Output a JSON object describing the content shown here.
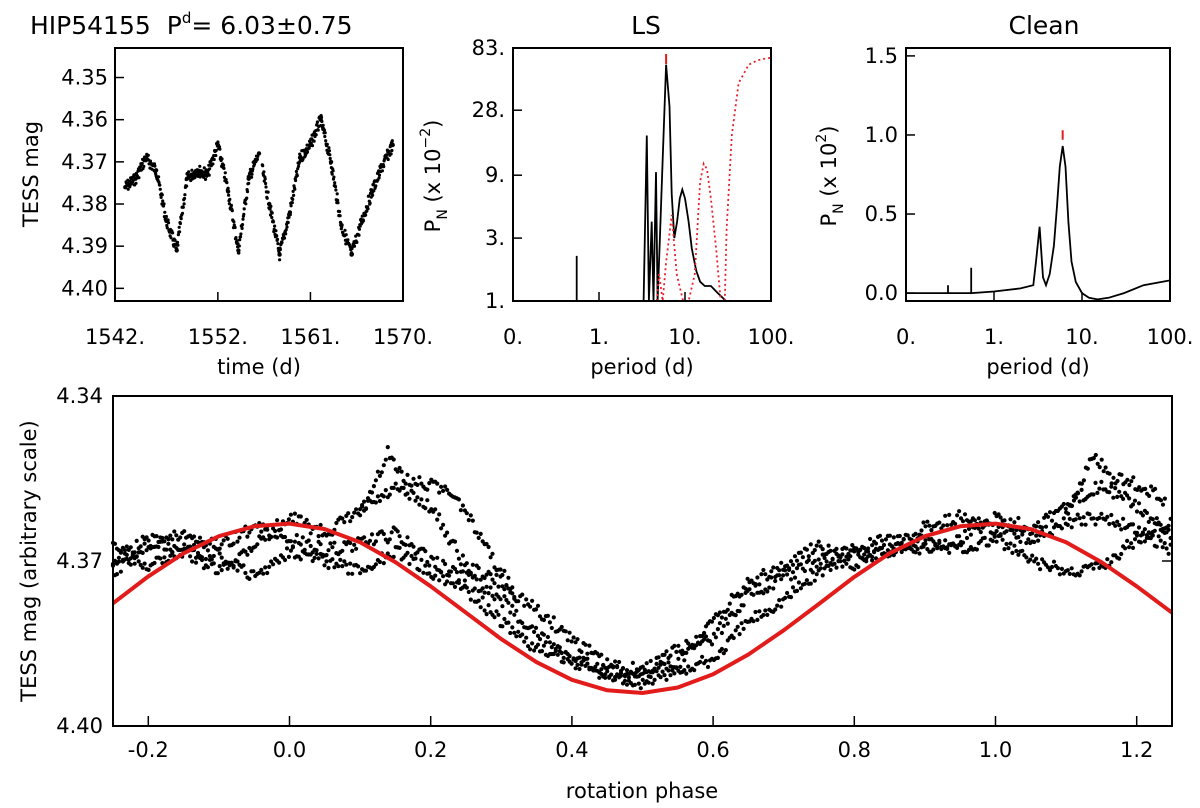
{
  "figure": {
    "star": "HIP54155",
    "period_symbol": "P",
    "period_sup": "d",
    "period_value": "= 6.03±0.75"
  },
  "chart_data": [
    {
      "id": "lightcurve",
      "type": "scatter",
      "title": "HIP54155 P^d= 6.03±0.75",
      "xlabel": "time (d)",
      "ylabel": "TESS mag",
      "xlim": [
        1542,
        1570
      ],
      "ylim": [
        4.403,
        4.343
      ],
      "y_inverted": true,
      "xticks": [
        1542,
        1552,
        1561,
        1570
      ],
      "xtick_labels": [
        "1542.",
        "1552.",
        "1561.",
        "1570."
      ],
      "yticks": [
        4.35,
        4.36,
        4.37,
        4.38,
        4.39,
        4.4
      ],
      "ytick_labels": [
        "4.35",
        "4.36",
        "4.37",
        "4.38",
        "4.39",
        "4.40"
      ],
      "x": [
        1543.0,
        1544.0,
        1545.0,
        1546.0,
        1547.0,
        1548.0,
        1549.0,
        1550.0,
        1551.0,
        1552.0,
        1553.0,
        1554.0,
        1555.0,
        1556.0,
        1557.0,
        1558.0,
        1559.0,
        1560.0,
        1561.0,
        1562.0,
        1563.0,
        1564.0,
        1565.0,
        1566.0,
        1567.0,
        1568.0,
        1569.0
      ],
      "y": [
        4.376,
        4.374,
        4.369,
        4.372,
        4.384,
        4.391,
        4.374,
        4.372,
        4.373,
        4.366,
        4.377,
        4.391,
        4.374,
        4.368,
        4.38,
        4.392,
        4.382,
        4.369,
        4.366,
        4.36,
        4.37,
        4.385,
        4.392,
        4.384,
        4.377,
        4.371,
        4.366
      ]
    },
    {
      "id": "ls",
      "type": "line",
      "title": "LS",
      "xlabel": "period (d)",
      "ylabel": "P_N (x 10^-2)",
      "xscale": "log",
      "yscale": "log",
      "xlim": [
        0.1,
        100
      ],
      "ylim": [
        1,
        83
      ],
      "xtick_labels": [
        "0.",
        "1.",
        "10.",
        "100."
      ],
      "ytick_labels": [
        "1.",
        "3.",
        "9.",
        "28.",
        "83."
      ],
      "yticks": [
        1,
        3,
        9,
        28,
        83
      ],
      "peak_marker_period": 6.03,
      "series": [
        {
          "name": "periodogram",
          "color": "#000000",
          "style": "solid",
          "x": [
            0.55,
            0.55,
            0.55,
            3.3,
            3.6,
            3.8,
            4.1,
            4.3,
            4.6,
            4.8,
            5.1,
            5.5,
            6.03,
            6.6,
            7.0,
            7.5,
            8.1,
            8.7,
            9.3,
            10.0,
            11.0,
            12.0,
            13.5,
            15.0,
            17.0,
            20.0,
            24.0,
            30.0
          ],
          "values": [
            1.0,
            2.2,
            1.0,
            1.0,
            18.0,
            1.0,
            4.0,
            1.0,
            9.5,
            1.0,
            3.0,
            12.0,
            62.0,
            30.0,
            6.5,
            3.0,
            4.0,
            6.0,
            7.0,
            6.0,
            4.0,
            2.5,
            1.7,
            1.4,
            1.3,
            1.3,
            1.15,
            1.0
          ]
        },
        {
          "name": "window function",
          "color": "#e8202a",
          "style": "dotted",
          "x": [
            4.7,
            5.0,
            5.5,
            6.0,
            7.0,
            8.0,
            9.5,
            11.0,
            13.0,
            15.0,
            16.5,
            18.0,
            20.0,
            23.0,
            26.0,
            29.0,
            30.5,
            35.0,
            42.0,
            55.0,
            70.0,
            85.0,
            100.0
          ],
          "values": [
            1.0,
            1.6,
            1.0,
            1.9,
            4.5,
            1.6,
            1.0,
            1.0,
            1.6,
            8.0,
            11.0,
            10.0,
            6.0,
            2.5,
            1.0,
            1.0,
            3.5,
            18.0,
            45.0,
            62.0,
            67.0,
            69.0,
            70.0
          ]
        }
      ]
    },
    {
      "id": "clean",
      "type": "line",
      "title": "Clean",
      "xlabel": "period (d)",
      "ylabel": "P_N (x 10^2)",
      "xscale": "log",
      "xlim": [
        0.1,
        100
      ],
      "ylim": [
        -0.05,
        1.55
      ],
      "xtick_labels": [
        "0.",
        "1.",
        "10.",
        "100."
      ],
      "yticks": [
        0.0,
        0.5,
        1.0,
        1.5
      ],
      "ytick_labels": [
        "0.0",
        "0.5",
        "1.0",
        "1.5"
      ],
      "peak_marker_period": 6.03,
      "series": [
        {
          "name": "clean periodogram",
          "color": "#000000",
          "style": "solid",
          "x": [
            0.1,
            0.3,
            0.3,
            0.3,
            0.55,
            0.55,
            0.55,
            1.0,
            2.0,
            2.8,
            3.0,
            3.3,
            3.6,
            3.9,
            4.3,
            4.8,
            5.2,
            5.6,
            6.03,
            6.5,
            7.0,
            7.6,
            8.5,
            10.0,
            12.0,
            15.0,
            20.0,
            30.0,
            50.0,
            100.0
          ],
          "values": [
            0.0,
            0.0,
            0.05,
            0.0,
            0.0,
            0.16,
            0.0,
            0.01,
            0.03,
            0.05,
            0.2,
            0.42,
            0.1,
            0.05,
            0.12,
            0.3,
            0.55,
            0.8,
            0.93,
            0.8,
            0.45,
            0.2,
            0.07,
            0.0,
            -0.03,
            -0.04,
            -0.03,
            0.0,
            0.05,
            0.08
          ]
        }
      ]
    },
    {
      "id": "phased",
      "type": "scatter",
      "title": "",
      "xlabel": "rotation phase",
      "ylabel": "TESS mag (arbitrary scale)",
      "xlim": [
        -0.25,
        1.25
      ],
      "ylim": [
        4.4,
        4.34
      ],
      "y_inverted": true,
      "xticks": [
        -0.2,
        0.0,
        0.2,
        0.4,
        0.6,
        0.8,
        1.0,
        1.2
      ],
      "xtick_labels": [
        "-0.2",
        "0.0",
        "0.2",
        "0.4",
        "0.6",
        "0.8",
        "1.0",
        "1.2"
      ],
      "yticks": [
        4.34,
        4.37,
        4.4
      ],
      "ytick_labels": [
        "4.34",
        "4.37",
        "4.40"
      ],
      "data_strands": [
        {
          "x": [
            -0.25,
            -0.2,
            -0.15,
            -0.1,
            -0.05,
            0.0,
            0.05,
            0.1,
            0.15,
            0.2,
            0.25,
            0.3,
            0.35,
            0.4,
            0.45,
            0.5,
            0.55,
            0.6,
            0.65,
            0.7,
            0.75,
            0.8,
            0.85,
            0.9,
            0.95,
            1.0,
            1.05,
            1.1,
            1.15,
            1.2,
            1.25
          ],
          "y": [
            4.37,
            4.366,
            4.368,
            4.372,
            4.367,
            4.362,
            4.365,
            4.361,
            4.357,
            4.36,
            4.371,
            4.374,
            4.379,
            4.384,
            4.389,
            4.39,
            4.386,
            4.384,
            4.376,
            4.373,
            4.37,
            4.368,
            4.366,
            4.368,
            4.366,
            4.362,
            4.364,
            4.36,
            4.356,
            4.36,
            4.366
          ]
        },
        {
          "x": [
            -0.25,
            -0.2,
            -0.15,
            -0.1,
            -0.05,
            0.0,
            0.05,
            0.1,
            0.15,
            0.2,
            0.25,
            0.3,
            0.35,
            0.4,
            0.45,
            0.5,
            0.55,
            0.6,
            0.65,
            0.7,
            0.75,
            0.8,
            0.85,
            0.9,
            0.95,
            1.0,
            1.05,
            1.1,
            1.15,
            1.2,
            1.25
          ],
          "y": [
            4.367,
            4.371,
            4.368,
            4.369,
            4.373,
            4.368,
            4.37,
            4.372,
            4.368,
            4.372,
            4.375,
            4.381,
            4.386,
            4.388,
            4.391,
            4.392,
            4.39,
            4.388,
            4.381,
            4.377,
            4.372,
            4.369,
            4.368,
            4.366,
            4.368,
            4.366,
            4.37,
            4.372,
            4.371,
            4.366,
            4.363
          ]
        },
        {
          "x": [
            -0.25,
            -0.2,
            -0.15,
            -0.1,
            -0.05,
            0.0,
            0.05,
            0.1,
            0.15,
            0.2,
            0.25,
            0.3,
            0.35,
            0.4,
            0.45,
            0.5,
            0.55,
            0.6,
            0.65,
            0.7,
            0.75,
            0.8,
            0.85,
            0.9,
            0.95,
            1.0,
            1.05,
            1.1,
            1.15,
            1.2,
            1.25
          ],
          "y": [
            4.372,
            4.367,
            4.365,
            4.367,
            4.364,
            4.366,
            4.368,
            4.367,
            4.365,
            4.37,
            4.373,
            4.377,
            4.383,
            4.388,
            4.39,
            4.39,
            4.389,
            4.381,
            4.374,
            4.371,
            4.367,
            4.371,
            4.368,
            4.364,
            4.362,
            4.364,
            4.366,
            4.363,
            4.362,
            4.364,
            4.368
          ]
        },
        {
          "x": [
            0.1,
            0.14,
            0.16,
            0.2,
            0.24,
            0.28,
            0.32
          ],
          "y": [
            4.362,
            4.35,
            4.355,
            4.356,
            4.359,
            4.368,
            4.376
          ]
        },
        {
          "x": [
            1.1,
            1.14,
            1.16,
            1.2,
            1.24
          ],
          "y": [
            4.362,
            4.35,
            4.355,
            4.356,
            4.359
          ]
        }
      ],
      "series": [
        {
          "name": "sinusoidal fit",
          "color": "#e21b1b",
          "style": "solid",
          "x": [
            -0.25,
            -0.2,
            -0.15,
            -0.1,
            -0.05,
            0.0,
            0.05,
            0.1,
            0.15,
            0.2,
            0.25,
            0.3,
            0.35,
            0.4,
            0.45,
            0.5,
            0.55,
            0.6,
            0.65,
            0.7,
            0.75,
            0.8,
            0.85,
            0.9,
            0.95,
            1.0,
            1.05,
            1.1,
            1.15,
            1.2,
            1.25
          ],
          "values": [
            4.3777,
            4.3728,
            4.3686,
            4.3655,
            4.3637,
            4.3632,
            4.3642,
            4.3666,
            4.3702,
            4.3746,
            4.3794,
            4.3842,
            4.3884,
            4.3916,
            4.3935,
            4.394,
            4.393,
            4.3906,
            4.387,
            4.3826,
            4.3778,
            4.3729,
            4.3686,
            4.3655,
            4.3637,
            4.3632,
            4.3642,
            4.3666,
            4.3702,
            4.3746,
            4.3794
          ]
        }
      ]
    }
  ]
}
